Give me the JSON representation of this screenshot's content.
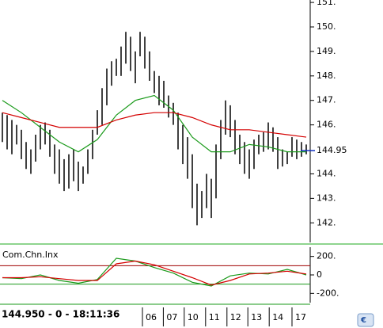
{
  "chart_data": [
    {
      "type": "bar-range",
      "high": [
        146.5,
        146.4,
        146.2,
        146.0,
        145.8,
        145.3,
        145.0,
        145.6,
        146.0,
        146.1,
        145.8,
        145.2,
        145.0,
        144.6,
        144.8,
        145.0,
        144.5,
        144.3,
        145.0,
        145.8,
        146.6,
        147.5,
        148.3,
        148.6,
        148.7,
        149.2,
        149.8,
        149.6,
        149.0,
        149.8,
        149.6,
        149.0,
        148.2,
        148.0,
        147.8,
        147.2,
        146.9,
        146.5,
        146.0,
        145.5,
        144.8,
        143.6,
        143.3,
        144.0,
        143.8,
        145.2,
        146.2,
        147.0,
        146.8,
        146.2,
        145.6,
        145.3,
        145.0,
        145.4,
        145.6,
        145.7,
        146.1,
        145.9,
        145.5,
        145.0,
        144.9,
        145.5,
        145.4,
        145.3,
        145.2
      ],
      "low": [
        145.3,
        145.0,
        144.8,
        145.2,
        144.6,
        144.2,
        144.0,
        144.5,
        145.0,
        145.2,
        144.7,
        144.0,
        143.6,
        143.3,
        143.4,
        143.7,
        143.3,
        143.6,
        144.0,
        144.6,
        145.6,
        146.0,
        146.8,
        147.6,
        148.0,
        148.0,
        148.5,
        148.2,
        147.7,
        148.8,
        148.3,
        147.8,
        147.3,
        146.8,
        146.7,
        146.3,
        146.0,
        145.0,
        144.4,
        143.8,
        142.6,
        141.9,
        142.2,
        142.6,
        142.2,
        143.0,
        144.6,
        145.6,
        145.5,
        144.8,
        144.4,
        144.0,
        143.8,
        144.2,
        144.8,
        144.9,
        145.0,
        144.9,
        144.2,
        144.3,
        144.4,
        144.7,
        144.6,
        144.7,
        144.8
      ],
      "color": "#000000",
      "series": [
        {
          "color": "#1a9a1a",
          "x": [
            0,
            4,
            8,
            12,
            16,
            20,
            24,
            28,
            32,
            36,
            40,
            44,
            48,
            52,
            56,
            60,
            64
          ],
          "values": [
            147.0,
            146.5,
            145.9,
            145.3,
            144.9,
            145.4,
            146.4,
            147.0,
            147.2,
            146.6,
            145.5,
            144.9,
            144.9,
            145.2,
            145.1,
            144.9,
            144.9
          ]
        },
        {
          "color": "#d40000",
          "x": [
            0,
            4,
            8,
            12,
            16,
            20,
            24,
            28,
            32,
            36,
            40,
            44,
            48,
            52,
            56,
            60,
            64
          ],
          "values": [
            146.5,
            146.3,
            146.1,
            145.9,
            145.9,
            145.9,
            146.2,
            146.4,
            146.5,
            146.5,
            146.3,
            146.0,
            145.8,
            145.8,
            145.7,
            145.6,
            145.5
          ]
        }
      ],
      "ylim": [
        141.2,
        151.1
      ],
      "yticks": [
        {
          "value": 151,
          "label": "151."
        },
        {
          "value": 150,
          "label": "150."
        },
        {
          "value": 149,
          "label": "149."
        },
        {
          "value": 148,
          "label": "148."
        },
        {
          "value": 147,
          "label": "147."
        },
        {
          "value": 146,
          "label": "146."
        },
        {
          "value": 144,
          "label": "144."
        },
        {
          "value": 143,
          "label": "143."
        },
        {
          "value": 142,
          "label": "142."
        }
      ],
      "last_price": {
        "value": 144.95,
        "label": "144.95"
      },
      "xticks": [
        {
          "value": 29.5,
          "label": "06"
        },
        {
          "value": 33.9,
          "label": "07"
        },
        {
          "value": 38.3,
          "label": "10"
        },
        {
          "value": 42.8,
          "label": "11"
        },
        {
          "value": 47.3,
          "label": "12"
        },
        {
          "value": 51.7,
          "label": "13"
        },
        {
          "value": 56.2,
          "label": "14"
        },
        {
          "value": 61,
          "label": "17"
        }
      ],
      "status": "144.950 - 0 - 18:11:36"
    },
    {
      "type": "line",
      "title": "Com.Chn.Inx",
      "series": [
        {
          "color": "#1a9a1a",
          "x": [
            0,
            4,
            8,
            12,
            16,
            20,
            24,
            28,
            32,
            36,
            40,
            44,
            48,
            52,
            56,
            60,
            64
          ],
          "values": [
            -30,
            -40,
            0,
            -60,
            -90,
            -50,
            180,
            150,
            80,
            20,
            -80,
            -120,
            -10,
            20,
            10,
            60,
            0
          ]
        },
        {
          "color": "#d40000",
          "x": [
            0,
            4,
            8,
            12,
            16,
            20,
            24,
            28,
            32,
            36,
            40,
            44,
            48,
            52,
            56,
            60,
            64
          ],
          "values": [
            -30,
            -30,
            -20,
            -40,
            -60,
            -60,
            120,
            150,
            110,
            40,
            -30,
            -110,
            -60,
            10,
            20,
            40,
            10
          ]
        }
      ],
      "levels": [
        {
          "value": 100,
          "color": "#a00000"
        },
        {
          "value": -100,
          "color": "#1a9a1a"
        }
      ],
      "ylim": [
        -300,
        300
      ],
      "yticks": [
        {
          "value": 200,
          "label": "200."
        },
        0,
        {
          "value": -200,
          "label": "-200."
        }
      ]
    }
  ]
}
